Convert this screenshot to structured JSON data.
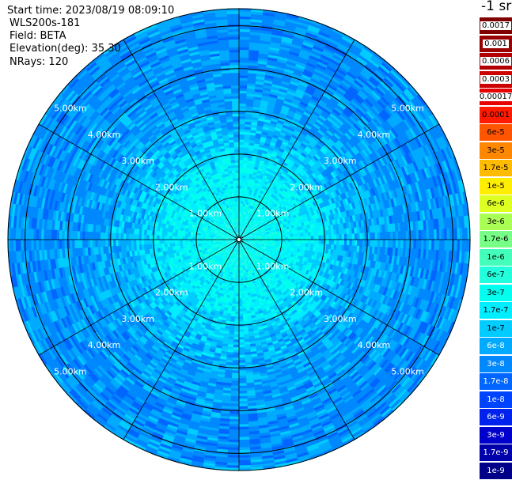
{
  "header": {
    "start_time": "Start time: 2023/08/19 08:09:10",
    "instrument": "WLS200s-181",
    "field": "Field: BETA",
    "elevation": "Elevation(deg): 35.30",
    "nrays": "NRays: 120"
  },
  "colorbar": {
    "title": "-1 sr",
    "bins": [
      {
        "label": "0.0017",
        "color": "#800000"
      },
      {
        "label": "0.001",
        "color": "#990000"
      },
      {
        "label": "0.0006",
        "color": "#b30000"
      },
      {
        "label": "0.0003",
        "color": "#cc0000"
      },
      {
        "label": "0.00017",
        "color": "#e60000"
      },
      {
        "label": "0.0001",
        "color": "#ff1a00"
      },
      {
        "label": "6e-5",
        "color": "#ff5500"
      },
      {
        "label": "3e-5",
        "color": "#ff8800"
      },
      {
        "label": "1.7e-5",
        "color": "#ffbb00"
      },
      {
        "label": "1e-5",
        "color": "#ffee00"
      },
      {
        "label": "6e-6",
        "color": "#ddff22"
      },
      {
        "label": "3e-6",
        "color": "#aaff55"
      },
      {
        "label": "1.7e-6",
        "color": "#77ff88"
      },
      {
        "label": "1e-6",
        "color": "#44ffbb"
      },
      {
        "label": "6e-7",
        "color": "#22ffdd"
      },
      {
        "label": "3e-7",
        "color": "#00ffee"
      },
      {
        "label": "1.7e-7",
        "color": "#00eeff"
      },
      {
        "label": "1e-7",
        "color": "#00ccff"
      },
      {
        "label": "6e-8",
        "color": "#00aaff"
      },
      {
        "label": "3e-8",
        "color": "#0088ff"
      },
      {
        "label": "1.7e-8",
        "color": "#0066ff"
      },
      {
        "label": "1e-8",
        "color": "#0044ff"
      },
      {
        "label": "6e-9",
        "color": "#0022ee"
      },
      {
        "label": "3e-9",
        "color": "#0000cc"
      },
      {
        "label": "1.7e-9",
        "color": "#0000aa"
      },
      {
        "label": "1e-9",
        "color": "#000088"
      }
    ]
  },
  "chart_data": {
    "type": "heatmap",
    "projection": "polar PPI",
    "field": "BETA",
    "units": "-1 sr",
    "range_rings_km": [
      1,
      2,
      3,
      4,
      5
    ],
    "range_labels": [
      "1.00km",
      "2.00km",
      "3.00km",
      "4.00km",
      "5.00km"
    ],
    "max_range_km": 5.4,
    "azimuth_spokes_deg": [
      0,
      30,
      60,
      90,
      120,
      150,
      180,
      210,
      240,
      270,
      300,
      330
    ],
    "nrays": 120,
    "range_profile": [
      {
        "range_km": 0.0,
        "beta": 3e-07
      },
      {
        "range_km": 0.5,
        "beta": 4e-07
      },
      {
        "range_km": 1.0,
        "beta": 3e-07
      },
      {
        "range_km": 1.5,
        "beta": 2.5e-07
      },
      {
        "range_km": 2.0,
        "beta": 1.7e-07
      },
      {
        "range_km": 2.5,
        "beta": 1e-07
      },
      {
        "range_km": 3.0,
        "beta": 8e-08
      },
      {
        "range_km": 3.5,
        "beta": 6e-08
      },
      {
        "range_km": 4.0,
        "beta": 6e-08
      },
      {
        "range_km": 4.5,
        "beta": 5e-08
      },
      {
        "range_km": 5.0,
        "beta": 5e-08
      },
      {
        "range_km": 5.4,
        "beta": 6e-08
      }
    ]
  }
}
